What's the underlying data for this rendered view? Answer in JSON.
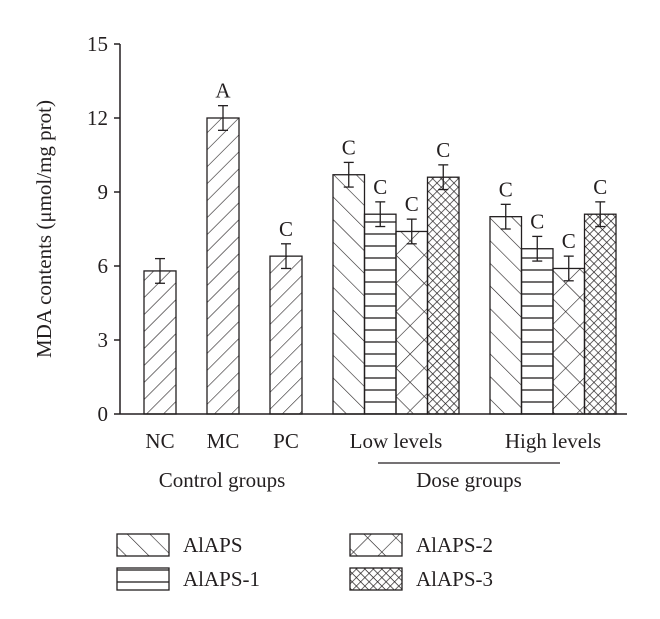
{
  "chart_data": {
    "type": "bar",
    "ylabel": "MDA contents (μmol/mg prot)",
    "ylim": [
      0,
      15
    ],
    "yticks": [
      "0",
      "3",
      "6",
      "9",
      "12",
      "15"
    ],
    "ytick_values": [
      0,
      3,
      6,
      9,
      12,
      15
    ],
    "grid": false,
    "control_groups": {
      "group_label": "Control groups",
      "bars": [
        {
          "category": "NC",
          "value": 5.8,
          "error": 0.5,
          "letter": ""
        },
        {
          "category": "MC",
          "value": 12.0,
          "error": 0.5,
          "letter": "A"
        },
        {
          "category": "PC",
          "value": 6.4,
          "error": 0.5,
          "letter": "C"
        }
      ]
    },
    "dose_groups": {
      "group_label": "Dose groups",
      "categories": [
        "Low levels",
        "High levels"
      ],
      "series": [
        {
          "name": "AlAPS",
          "pattern": "diag-down",
          "values": [
            9.7,
            8.0
          ],
          "errors": [
            0.5,
            0.5
          ],
          "letters": [
            "C",
            "C"
          ]
        },
        {
          "name": "AlAPS-1",
          "pattern": "horizontal",
          "values": [
            8.1,
            6.7
          ],
          "errors": [
            0.5,
            0.5
          ],
          "letters": [
            "C",
            "C"
          ]
        },
        {
          "name": "AlAPS-2",
          "pattern": "cross",
          "values": [
            7.4,
            5.9
          ],
          "errors": [
            0.5,
            0.5
          ],
          "letters": [
            "C",
            "C"
          ]
        },
        {
          "name": "AlAPS-3",
          "pattern": "dense-cross",
          "values": [
            9.6,
            8.1
          ],
          "errors": [
            0.5,
            0.5
          ],
          "letters": [
            "C",
            "C"
          ]
        }
      ]
    },
    "legend_placement": "bottom",
    "colors": {
      "ink": "#231f20",
      "background": "#ffffff"
    }
  }
}
